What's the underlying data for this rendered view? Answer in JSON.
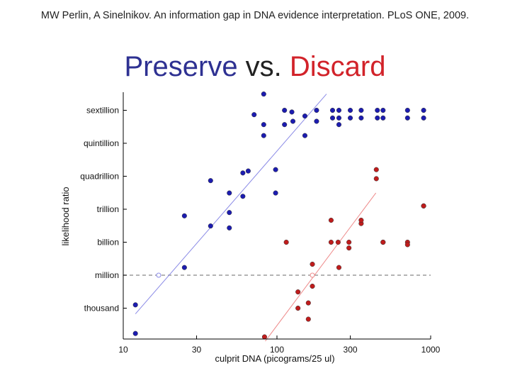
{
  "citation": "MW Perlin, A Sinelnikov. An information gap in DNA evidence interpretation. PLoS ONE, 2009.",
  "title": {
    "part1": "Preserve",
    "part2": " vs. ",
    "part3": "Discard"
  },
  "colors": {
    "preserve": "#1c1cb0",
    "discard": "#c01c1c",
    "preserve_line": "#8a8ae6",
    "discard_line": "#ee8a8a",
    "reference_line": "#888888"
  },
  "chart_data": {
    "type": "scatter",
    "title": "Preserve vs. Discard",
    "xlabel": "culprit DNA (picograms/25 ul)",
    "ylabel": "likelihood ratio",
    "x_scale": "log",
    "y_scale": "log",
    "xlim": [
      10,
      1000
    ],
    "ylim": [
      0.3,
      300000000000000000000000
    ],
    "x_ticks": [
      {
        "value": 10,
        "label": "10"
      },
      {
        "value": 30,
        "label": "30"
      },
      {
        "value": 100,
        "label": "100"
      },
      {
        "value": 300,
        "label": "300"
      },
      {
        "value": 1000,
        "label": "1000"
      }
    ],
    "y_ticks": [
      {
        "value": 1000,
        "label": "thousand"
      },
      {
        "value": 1000000,
        "label": "million"
      },
      {
        "value": 1000000000,
        "label": "billion"
      },
      {
        "value": 1000000000000,
        "label": "trillion"
      },
      {
        "value": 1000000000000000,
        "label": "quadrillion"
      },
      {
        "value": 1000000000000000000,
        "label": "quintillion"
      },
      {
        "value": 1000000000000000000000,
        "label": "sextillion"
      }
    ],
    "reference_line": {
      "y": 1000000,
      "style": "dashed"
    },
    "series": [
      {
        "key": "preserve",
        "color": "#1c1cb0",
        "points": [
          [
            12,
            5
          ],
          [
            12,
            2000
          ],
          [
            25,
            5000000
          ],
          [
            25,
            250000000000
          ],
          [
            37,
            30000000000
          ],
          [
            37,
            400000000000000
          ],
          [
            49,
            30000000000000
          ],
          [
            49,
            20000000000
          ],
          [
            49,
            500000000000
          ],
          [
            60,
            2000000000000000
          ],
          [
            60,
            15000000000000
          ],
          [
            65,
            3000000000000000
          ],
          [
            71,
            400000000000000000000
          ],
          [
            82,
            50000000000000000000
          ],
          [
            82,
            5000000000000000000
          ],
          [
            82,
            30000000000000000000000
          ],
          [
            98,
            4000000000000000
          ],
          [
            98,
            30000000000000
          ],
          [
            112,
            1000000000000000000000
          ],
          [
            112,
            50000000000000000000
          ],
          [
            125,
            700000000000000000000
          ],
          [
            127,
            100000000000000000000
          ],
          [
            152,
            5000000000000000000
          ],
          [
            152,
            300000000000000000000
          ],
          [
            181,
            1000000000000000000000
          ],
          [
            181,
            100000000000000000000
          ],
          [
            230,
            1000000000000000000000
          ],
          [
            230,
            200000000000000000000
          ],
          [
            253,
            1000000000000000000000
          ],
          [
            253,
            200000000000000000000
          ],
          [
            253,
            50000000000000000000
          ],
          [
            300,
            1000000000000000000000
          ],
          [
            300,
            200000000000000000000
          ],
          [
            353,
            1000000000000000000000
          ],
          [
            353,
            200000000000000000000
          ],
          [
            450,
            1000000000000000000000
          ],
          [
            450,
            200000000000000000000
          ],
          [
            490,
            1000000000000000000000
          ],
          [
            490,
            200000000000000000000
          ],
          [
            707,
            1000000000000000000000
          ],
          [
            707,
            200000000000000000000
          ],
          [
            900,
            1000000000000000000000
          ],
          [
            900,
            200000000000000000000
          ]
        ],
        "fit": [
          [
            12,
            300
          ],
          [
            210,
            30000000000000000000000
          ]
        ]
      },
      {
        "key": "discard",
        "color": "#c01c1c",
        "points": [
          [
            83,
            0.3
          ],
          [
            115,
            1000000000
          ],
          [
            137,
            1000
          ],
          [
            137,
            30000
          ],
          [
            160,
            3000
          ],
          [
            160,
            100
          ],
          [
            170,
            10000000
          ],
          [
            170,
            100000
          ],
          [
            225,
            100000000000
          ],
          [
            225,
            1000000000
          ],
          [
            250,
            1000000000
          ],
          [
            253,
            5000000
          ],
          [
            294,
            1000000000
          ],
          [
            294,
            300000000
          ],
          [
            353,
            50000000000
          ],
          [
            353,
            100000000000
          ],
          [
            443,
            4000000000000000
          ],
          [
            443,
            600000000000000
          ],
          [
            490,
            1000000000
          ],
          [
            490,
            1000000000
          ],
          [
            707,
            1000000000
          ],
          [
            707,
            600000000
          ],
          [
            900,
            2000000000000
          ],
          [
            900,
            2000000000000
          ]
        ],
        "fit": [
          [
            84,
            1
          ],
          [
            440,
            30000000000000
          ]
        ]
      }
    ],
    "estimated_crossings": [
      {
        "series": "preserve",
        "x": 17,
        "y": 1000000
      },
      {
        "series": "discard",
        "x": 170,
        "y": 1000000
      }
    ]
  }
}
